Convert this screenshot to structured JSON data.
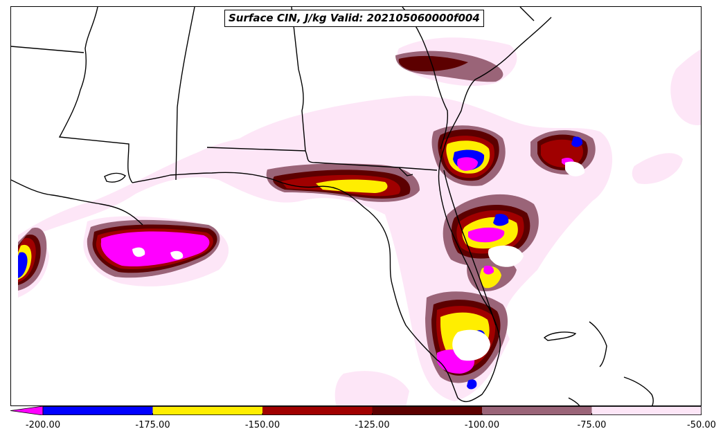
{
  "title": "Surface CIN, J/kg Valid: 202105060000f004",
  "legend": {
    "colors": [
      "#ff00ff",
      "#0000ff",
      "#ffee00",
      "#a00000",
      "#5c0000",
      "#9a6478",
      "#fde6f7"
    ],
    "ticks": [
      "-200.00",
      "-175.00",
      "-150.00",
      "-125.00",
      "-100.00",
      "-75.00",
      "-50.00"
    ]
  },
  "colors": {
    "lt_-200": "#ff00ff",
    "-200_-175": "#0000ff",
    "-175_-150": "#ffee00",
    "-150_-125": "#a00000",
    "-125_-100": "#5c0000",
    "-100_-75": "#9a6478",
    "-75_-50": "#fde6f7",
    "coastline": "#000000"
  }
}
